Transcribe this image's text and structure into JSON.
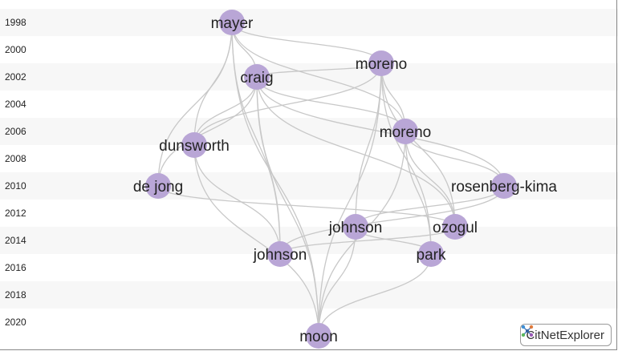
{
  "years": [
    "1998",
    "2000",
    "2002",
    "2004",
    "2006",
    "2008",
    "2010",
    "2012",
    "2014",
    "2016",
    "2018",
    "2020"
  ],
  "node_color": "#b9a6d6",
  "edge_color": "#c8c8c8",
  "nodes": [
    {
      "id": "mayer",
      "label": "mayer",
      "year": 1998
    },
    {
      "id": "craig",
      "label": "craig",
      "year": 2002
    },
    {
      "id": "moreno1",
      "label": "moreno",
      "year": 2001
    },
    {
      "id": "moreno2",
      "label": "moreno",
      "year": 2006
    },
    {
      "id": "dunsworth",
      "label": "dunsworth",
      "year": 2007
    },
    {
      "id": "dejong",
      "label": "de jong",
      "year": 2010
    },
    {
      "id": "rosenberg",
      "label": "rosenberg-kima",
      "year": 2010
    },
    {
      "id": "johnson1",
      "label": "johnson",
      "year": 2013
    },
    {
      "id": "ozogul",
      "label": "ozogul",
      "year": 2013
    },
    {
      "id": "johnson2",
      "label": "johnson",
      "year": 2015
    },
    {
      "id": "park",
      "label": "park",
      "year": 2015
    },
    {
      "id": "moon",
      "label": "moon",
      "year": 2021
    }
  ],
  "edges": [
    [
      "mayer",
      "moreno1"
    ],
    [
      "mayer",
      "moreno2"
    ],
    [
      "mayer",
      "dunsworth"
    ],
    [
      "mayer",
      "dejong"
    ],
    [
      "mayer",
      "johnson2"
    ],
    [
      "mayer",
      "moon"
    ],
    [
      "mayer",
      "craig"
    ],
    [
      "craig",
      "moreno1"
    ],
    [
      "craig",
      "moreno2"
    ],
    [
      "craig",
      "dunsworth"
    ],
    [
      "craig",
      "dejong"
    ],
    [
      "craig",
      "rosenberg"
    ],
    [
      "craig",
      "ozogul"
    ],
    [
      "craig",
      "johnson2"
    ],
    [
      "craig",
      "moon"
    ],
    [
      "moreno1",
      "dunsworth"
    ],
    [
      "moreno1",
      "moreno2"
    ],
    [
      "moreno1",
      "johnson1"
    ],
    [
      "moreno1",
      "ozogul"
    ],
    [
      "moreno1",
      "park"
    ],
    [
      "moreno1",
      "moon"
    ],
    [
      "moreno2",
      "rosenberg"
    ],
    [
      "moreno2",
      "ozogul"
    ],
    [
      "moreno2",
      "park"
    ],
    [
      "moreno2",
      "moon"
    ],
    [
      "dunsworth",
      "johnson2"
    ],
    [
      "dunsworth",
      "moon"
    ],
    [
      "dejong",
      "ozogul"
    ],
    [
      "rosenberg",
      "johnson1"
    ],
    [
      "rosenberg",
      "johnson2"
    ],
    [
      "johnson1",
      "park"
    ],
    [
      "johnson1",
      "moon"
    ],
    [
      "ozogul",
      "johnson2"
    ],
    [
      "park",
      "moon"
    ]
  ],
  "brand": {
    "label": "CitNetExplorer",
    "icon": "citnet-logo-icon"
  }
}
